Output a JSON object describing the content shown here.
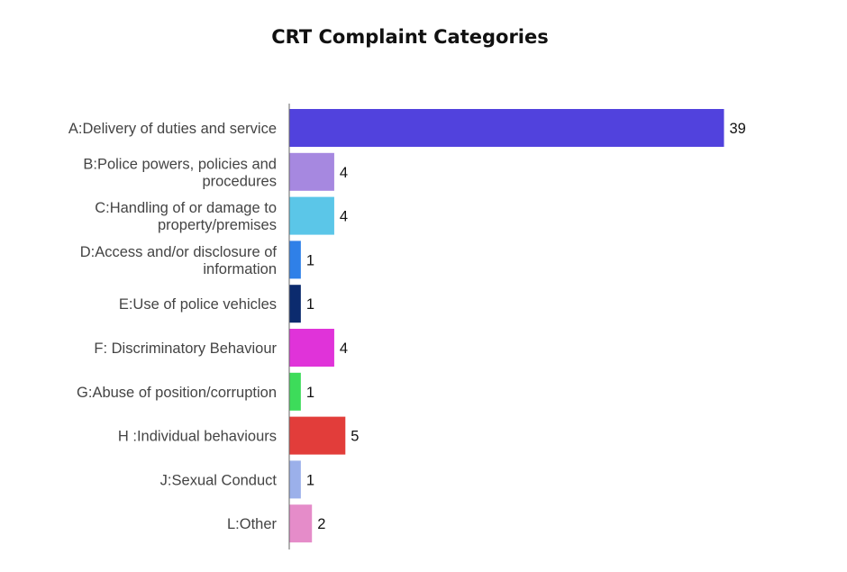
{
  "chart_data": {
    "type": "bar",
    "orientation": "horizontal",
    "title": "CRT Complaint Categories",
    "xlabel": "",
    "ylabel": "",
    "xlim": [
      0,
      39
    ],
    "grid": false,
    "legend": "none",
    "data_labels": true,
    "categories": [
      [
        "A:Delivery of duties and service"
      ],
      [
        "B:Police powers, policies and",
        "procedures"
      ],
      [
        "C:Handling of or damage to",
        "property/premises"
      ],
      [
        "D:Access and/or disclosure of",
        "information"
      ],
      [
        "E:Use of police vehicles"
      ],
      [
        "F: Discriminatory Behaviour"
      ],
      [
        "G:Abuse of position/corruption"
      ],
      [
        "H :Individual behaviours"
      ],
      [
        "J:Sexual Conduct"
      ],
      [
        "L:Other"
      ]
    ],
    "values": [
      39,
      4,
      4,
      1,
      1,
      4,
      1,
      5,
      1,
      2
    ],
    "colors": [
      "#5142dd",
      "#a688e0",
      "#5bc6e8",
      "#2f80e8",
      "#0c2b6e",
      "#e033d9",
      "#3ddc5a",
      "#e23d3a",
      "#9bb0ea",
      "#e58cc9"
    ]
  }
}
